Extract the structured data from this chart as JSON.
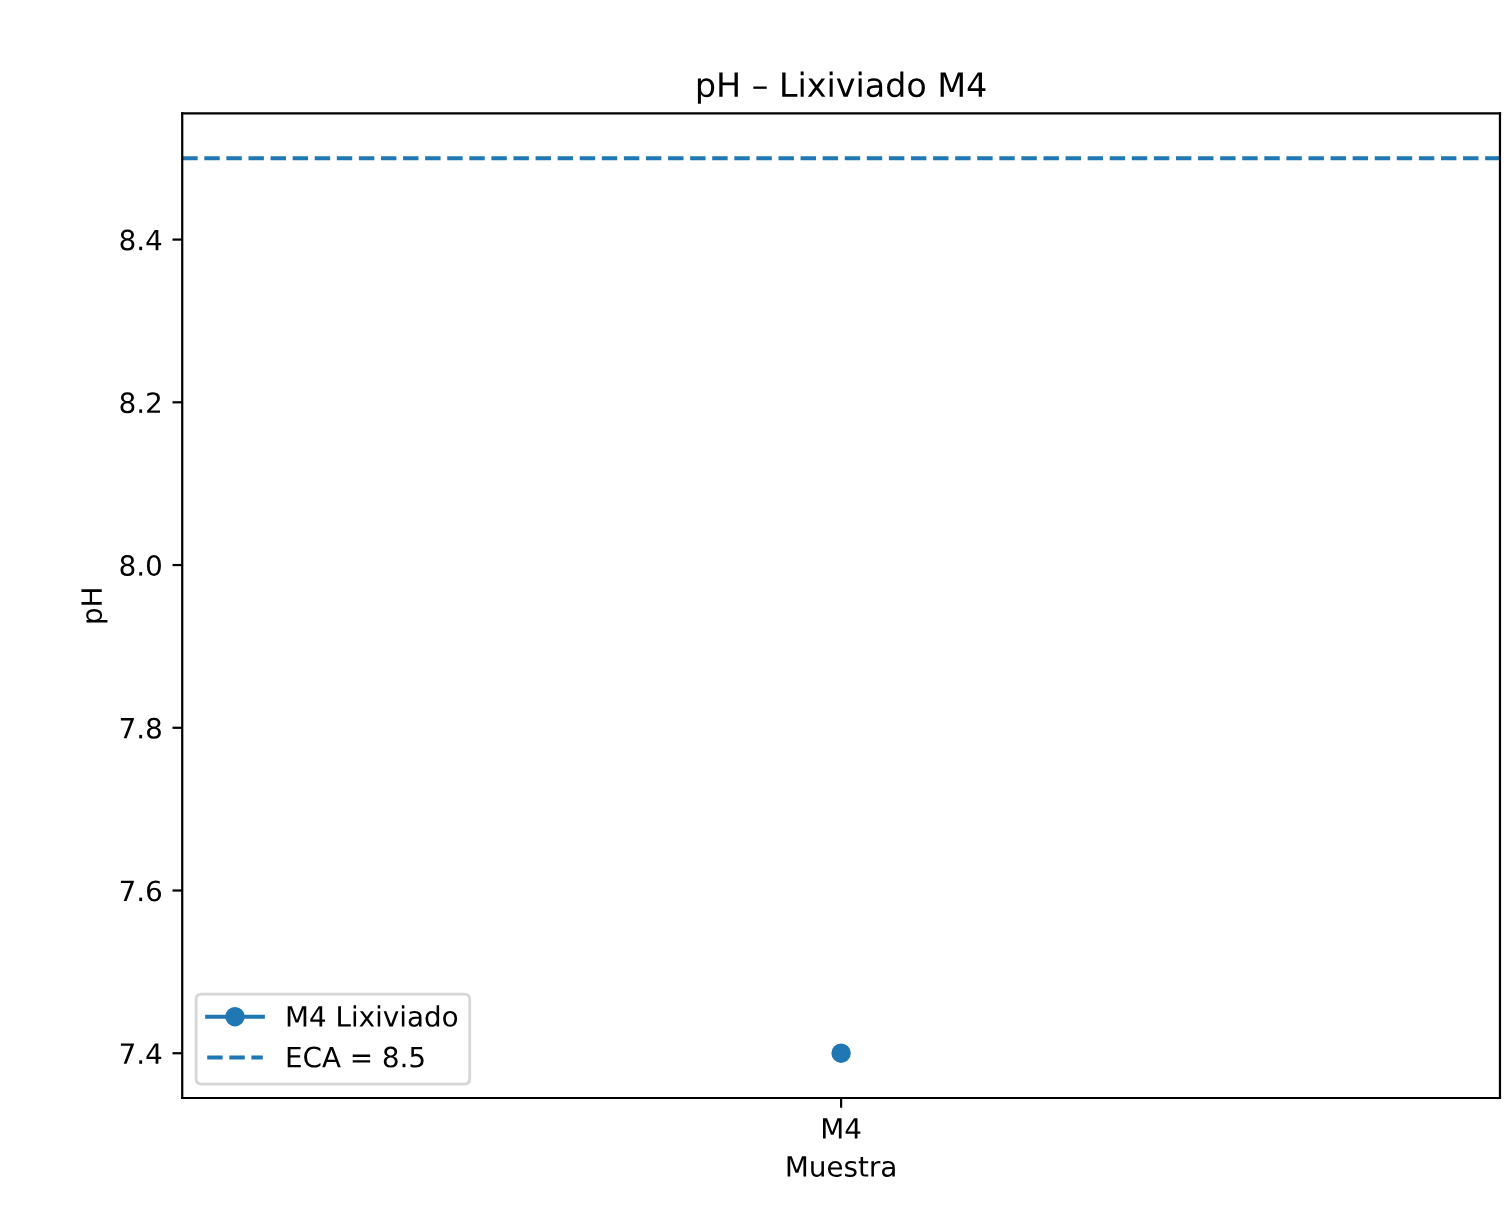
{
  "chart_data": {
    "type": "line",
    "title": "pH – Lixiviado M4",
    "xlabel": "Muestra",
    "ylabel": "pH",
    "categories": [
      "M4"
    ],
    "series": [
      {
        "name": "M4 Lixiviado",
        "color": "#1f77b4",
        "values": [
          7.4
        ]
      }
    ],
    "ref_lines": [
      {
        "axis": "y",
        "value": 8.5,
        "label": "ECA = 8.5",
        "color": "#1f77b4",
        "line_style": "dashed"
      }
    ],
    "ylim": [
      7.345,
      8.555
    ],
    "yticks": [
      7.4,
      7.6,
      7.8,
      {
        "value": 8,
        "label": "8.0"
      },
      8.2,
      8.4
    ],
    "marker": "circle",
    "line_style": "solid",
    "legend": "lower left",
    "grid": false
  }
}
